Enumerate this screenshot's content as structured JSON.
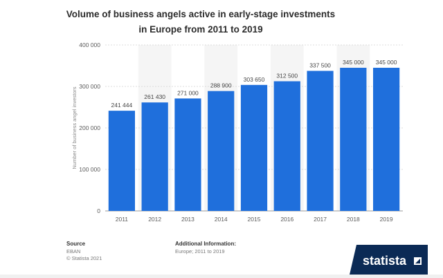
{
  "chart_data": {
    "type": "bar",
    "title": "Volume of business angels active in early-stage investments in Europe from 2011 to 2019",
    "xlabel": "",
    "ylabel": "Number of business angel investors",
    "categories": [
      "2011",
      "2012",
      "2013",
      "2014",
      "2015",
      "2016",
      "2017",
      "2018",
      "2019"
    ],
    "values": [
      241444,
      261430,
      271000,
      288900,
      303650,
      312500,
      337500,
      345000,
      345000
    ],
    "value_labels": [
      "241 444",
      "261 430",
      "271 000",
      "288 900",
      "303 650",
      "312 500",
      "337 500",
      "345 000",
      "345 000"
    ],
    "ylim": [
      0,
      400000
    ],
    "yticks": [
      0,
      100000,
      200000,
      300000,
      400000
    ],
    "ytick_labels": [
      "0",
      "100 000",
      "200 000",
      "300 000",
      "400 000"
    ],
    "grid": true,
    "bar_color": "#1f6fdc"
  },
  "footer": {
    "source_title": "Source",
    "source": "EBAN",
    "copyright": "© Statista 2021",
    "info_title": "Additional Information:",
    "info": "Europe; 2011 to 2019"
  },
  "logo": {
    "text": "statista",
    "color": "#0b2a55"
  }
}
